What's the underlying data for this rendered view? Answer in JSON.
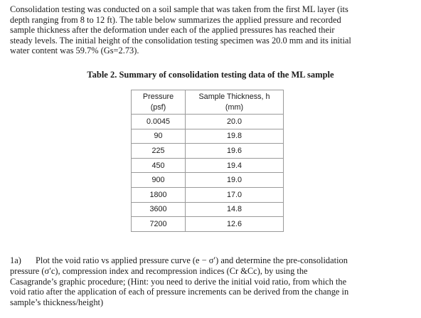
{
  "intro": {
    "lines": [
      "Consolidation testing was conducted on a soil sample that was taken from the first ML layer (its",
      "depth ranging from 8 to 12 ft). The table below summarizes the applied pressure and recorded",
      "sample thickness after the deformation under each of the applied pressures has reached their",
      "steady levels. The initial height of the consolidation testing specimen was 20.0 mm and its initial",
      "water content was 59.7% (Gs=2.73)."
    ]
  },
  "table": {
    "caption": "Table 2. Summary of consolidation testing data of the ML sample",
    "headers": {
      "pressure_line1": "Pressure",
      "pressure_line2": "(psf)",
      "thickness_line1": "Sample Thickness, h",
      "thickness_line2": "(mm)"
    },
    "rows": [
      [
        "0.0045",
        "20.0"
      ],
      [
        "90",
        "19.8"
      ],
      [
        "225",
        "19.6"
      ],
      [
        "450",
        "19.4"
      ],
      [
        "900",
        "19.0"
      ],
      [
        "1800",
        "17.0"
      ],
      [
        "3600",
        "14.8"
      ],
      [
        "7200",
        "12.6"
      ]
    ]
  },
  "question": {
    "number": "1a)",
    "line1": "Plot the void ratio vs applied pressure curve (e − σ′) and determine the pre-consolidation",
    "line2": "pressure (σ′c), compression index and recompression indices (Cr &Cc), by using the",
    "line3": "Casagrande’s graphic procedure; (Hint: you need to derive the initial void ratio, from which the",
    "line4": "void ratio after the application of each of pressure increments can be derived from the change in",
    "line5": "sample’s thickness/height)"
  }
}
